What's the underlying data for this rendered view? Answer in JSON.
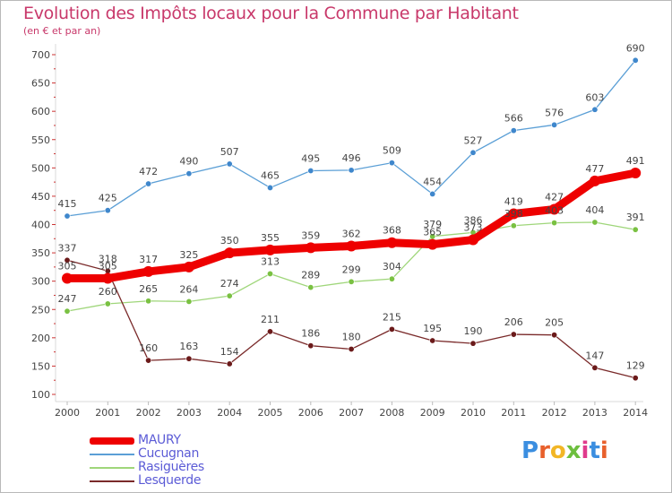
{
  "title": "Evolution des Impôts locaux pour la Commune par Habitant",
  "subtitle": "(en € et par an)",
  "logo": {
    "text": "Proxiti",
    "letters": [
      {
        "ch": "P",
        "color": "#3b8ee0"
      },
      {
        "ch": "r",
        "color": "#e8602c"
      },
      {
        "ch": "o",
        "color": "#f2b626"
      },
      {
        "ch": "x",
        "color": "#6dbf3e"
      },
      {
        "ch": "i",
        "color": "#e03a8c"
      },
      {
        "ch": "t",
        "color": "#3b8ee0"
      },
      {
        "ch": "i",
        "color": "#e8602c"
      }
    ]
  },
  "chart_data": {
    "type": "line",
    "x": [
      "2000",
      "2001",
      "2002",
      "2003",
      "2004",
      "2005",
      "2006",
      "2007",
      "2008",
      "2009",
      "2010",
      "2011",
      "2012",
      "2013",
      "2014"
    ],
    "ylim": [
      100,
      700
    ],
    "yticks": [
      100,
      150,
      200,
      250,
      300,
      350,
      400,
      450,
      500,
      550,
      600,
      650,
      700
    ],
    "grid": false,
    "legend_position": "bottom-left",
    "series": [
      {
        "name": "MAURY",
        "color": "#ee0000",
        "emphasis": true,
        "values": [
          305,
          305,
          317,
          325,
          350,
          355,
          359,
          362,
          368,
          365,
          373,
          419,
          427,
          477,
          491
        ]
      },
      {
        "name": "Cucugnan",
        "color": "#5b9fd6",
        "marker": "#3f87cc",
        "values": [
          415,
          425,
          472,
          490,
          507,
          465,
          495,
          496,
          509,
          454,
          527,
          566,
          576,
          603,
          690
        ]
      },
      {
        "name": "Rasiguères",
        "color": "#9fd67a",
        "marker": "#7ac142",
        "values": [
          247,
          260,
          265,
          264,
          274,
          313,
          289,
          299,
          304,
          379,
          386,
          398,
          403,
          404,
          391
        ]
      },
      {
        "name": "Lesquerde",
        "color": "#7a2a2a",
        "marker": "#6b1a1a",
        "values": [
          337,
          318,
          160,
          163,
          154,
          211,
          186,
          180,
          215,
          195,
          190,
          206,
          205,
          147,
          129
        ]
      }
    ]
  }
}
